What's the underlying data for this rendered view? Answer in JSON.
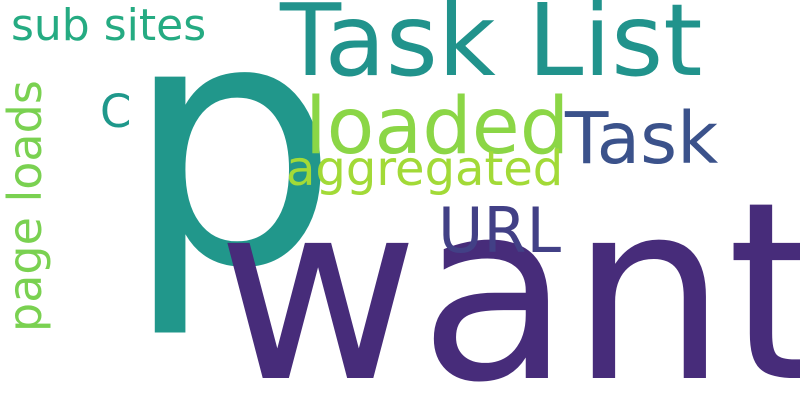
{
  "words": [
    {
      "text": "want",
      "color": "#472c7a"
    },
    {
      "text": "p",
      "color": "#21978b"
    },
    {
      "text": "Task List",
      "color": "#21938c"
    },
    {
      "text": "loaded",
      "color": "#8bd646"
    },
    {
      "text": "Task",
      "color": "#3b528b"
    },
    {
      "text": "aggregated",
      "color": "#a2da37"
    },
    {
      "text": "URL",
      "color": "#424086"
    },
    {
      "text": "sub sites",
      "color": "#25ab82"
    },
    {
      "text": "C",
      "color": "#1f988b"
    },
    {
      "text": "page loads",
      "color": "#7ad151"
    }
  ]
}
